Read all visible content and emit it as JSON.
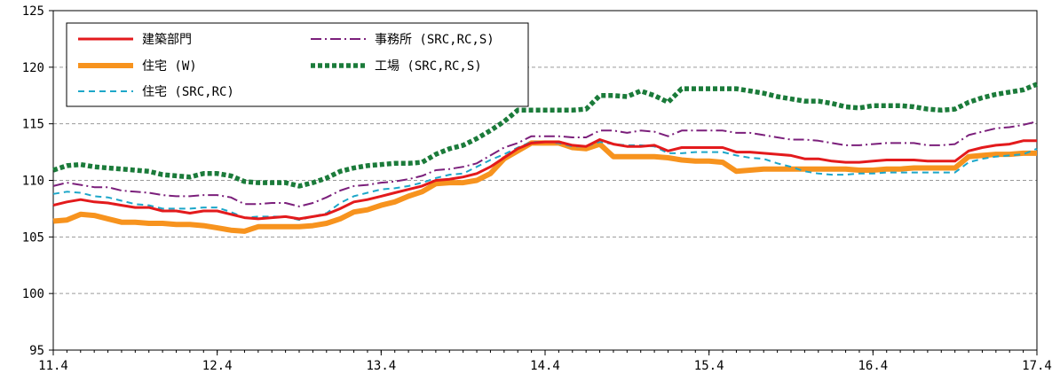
{
  "chart_data": {
    "type": "line",
    "title": "",
    "xlabel": "",
    "ylabel": "",
    "ylim": [
      95,
      125
    ],
    "y_ticks": [
      95,
      100,
      105,
      110,
      115,
      120,
      125
    ],
    "y_tick_labels": [
      "95",
      "100",
      "105",
      "110",
      "115",
      "120",
      "125"
    ],
    "x_tick_labels": [
      "11.4",
      "12.4",
      "13.4",
      "14.4",
      "15.4",
      "16.4",
      "17.4"
    ],
    "grid": "horizontal dashed",
    "legend_position": "top-left",
    "x": [
      "2011-04",
      "2011-05",
      "2011-06",
      "2011-07",
      "2011-08",
      "2011-09",
      "2011-10",
      "2011-11",
      "2011-12",
      "2012-01",
      "2012-02",
      "2012-03",
      "2012-04",
      "2012-05",
      "2012-06",
      "2012-07",
      "2012-08",
      "2012-09",
      "2012-10",
      "2012-11",
      "2012-12",
      "2013-01",
      "2013-02",
      "2013-03",
      "2013-04",
      "2013-05",
      "2013-06",
      "2013-07",
      "2013-08",
      "2013-09",
      "2013-10",
      "2013-11",
      "2013-12",
      "2014-01",
      "2014-02",
      "2014-03",
      "2014-04",
      "2014-05",
      "2014-06",
      "2014-07",
      "2014-08",
      "2014-09",
      "2014-10",
      "2014-11",
      "2014-12",
      "2015-01",
      "2015-02",
      "2015-03",
      "2015-04",
      "2015-05",
      "2015-06",
      "2015-07",
      "2015-08",
      "2015-09",
      "2015-10",
      "2015-11",
      "2015-12",
      "2016-01",
      "2016-02",
      "2016-03",
      "2016-04",
      "2016-05",
      "2016-06",
      "2016-07",
      "2016-08",
      "2016-09",
      "2016-10",
      "2016-11",
      "2016-12",
      "2017-01",
      "2017-02",
      "2017-03",
      "2017-04"
    ],
    "series": [
      {
        "name": "建築部門",
        "color": "#e31a1c",
        "style": "solid",
        "values": [
          107.8,
          108.1,
          108.3,
          108.1,
          108.0,
          107.8,
          107.6,
          107.6,
          107.3,
          107.3,
          107.1,
          107.3,
          107.3,
          107.0,
          106.7,
          106.6,
          106.7,
          106.8,
          106.6,
          106.8,
          107.0,
          107.5,
          108.1,
          108.3,
          108.6,
          108.9,
          109.2,
          109.5,
          110.0,
          110.1,
          110.3,
          110.6,
          111.2,
          112.0,
          112.8,
          113.3,
          113.4,
          113.4,
          113.1,
          113.0,
          113.6,
          113.2,
          113.0,
          113.0,
          113.1,
          112.6,
          112.9,
          112.9,
          112.9,
          112.9,
          112.5,
          112.5,
          112.4,
          112.3,
          112.2,
          111.9,
          111.9,
          111.7,
          111.6,
          111.6,
          111.7,
          111.8,
          111.8,
          111.8,
          111.7,
          111.7,
          111.7,
          112.6,
          112.9,
          113.1,
          113.2,
          113.5,
          113.5
        ]
      },
      {
        "name": "住宅 (W)",
        "color": "#f7931e",
        "style": "thick",
        "values": [
          106.4,
          106.5,
          107.0,
          106.9,
          106.6,
          106.3,
          106.3,
          106.2,
          106.2,
          106.1,
          106.1,
          106.0,
          105.8,
          105.6,
          105.5,
          105.9,
          105.9,
          105.9,
          105.9,
          106.0,
          106.2,
          106.6,
          107.2,
          107.4,
          107.8,
          108.1,
          108.6,
          109.0,
          109.7,
          109.8,
          109.8,
          110.0,
          110.6,
          111.9,
          112.6,
          113.3,
          113.3,
          113.3,
          112.9,
          112.8,
          113.2,
          112.1,
          112.1,
          112.1,
          112.1,
          112.0,
          111.8,
          111.7,
          111.7,
          111.6,
          110.8,
          110.9,
          111.0,
          111.0,
          111.0,
          111.0,
          111.0,
          111.0,
          111.0,
          110.9,
          110.9,
          111.0,
          111.0,
          111.1,
          111.1,
          111.1,
          111.1,
          112.1,
          112.2,
          112.3,
          112.3,
          112.4,
          112.4
        ]
      },
      {
        "name": "住宅 (SRC,RC)",
        "color": "#1da7c9",
        "style": "dashed",
        "values": [
          108.8,
          109.0,
          108.9,
          108.6,
          108.5,
          108.2,
          107.9,
          107.8,
          107.5,
          107.5,
          107.5,
          107.6,
          107.6,
          107.2,
          106.7,
          106.8,
          106.8,
          106.8,
          106.5,
          106.8,
          107.1,
          108.0,
          108.6,
          108.9,
          109.2,
          109.3,
          109.5,
          109.8,
          110.2,
          110.5,
          110.6,
          111.2,
          111.8,
          112.3,
          112.9,
          113.4,
          113.4,
          113.3,
          113.0,
          113.0,
          113.4,
          113.2,
          113.1,
          113.1,
          113.0,
          112.4,
          112.4,
          112.5,
          112.5,
          112.5,
          112.2,
          112.0,
          111.9,
          111.5,
          111.2,
          110.8,
          110.6,
          110.5,
          110.5,
          110.6,
          110.6,
          110.7,
          110.7,
          110.7,
          110.7,
          110.7,
          110.7,
          111.6,
          111.9,
          112.1,
          112.2,
          112.3,
          112.8
        ]
      },
      {
        "name": "事務所 (SRC,RC,S)",
        "color": "#7b1f7b",
        "style": "dashdot",
        "values": [
          109.5,
          109.8,
          109.6,
          109.4,
          109.4,
          109.1,
          109.0,
          108.9,
          108.7,
          108.6,
          108.6,
          108.7,
          108.7,
          108.5,
          107.9,
          107.9,
          108.0,
          108.0,
          107.7,
          108.0,
          108.5,
          109.1,
          109.5,
          109.6,
          109.8,
          109.9,
          110.1,
          110.4,
          110.9,
          111.0,
          111.2,
          111.5,
          112.2,
          112.9,
          113.3,
          113.9,
          113.9,
          113.9,
          113.8,
          113.8,
          114.4,
          114.4,
          114.2,
          114.4,
          114.3,
          113.9,
          114.4,
          114.4,
          114.4,
          114.4,
          114.2,
          114.2,
          114.0,
          113.8,
          113.6,
          113.6,
          113.5,
          113.3,
          113.1,
          113.1,
          113.2,
          113.3,
          113.3,
          113.3,
          113.1,
          113.1,
          113.2,
          114.0,
          114.3,
          114.6,
          114.7,
          114.9,
          115.2
        ]
      },
      {
        "name": "工場 (SRC,RC,S)",
        "color": "#1b7b3a",
        "style": "dotted",
        "values": [
          110.9,
          111.3,
          111.4,
          111.2,
          111.1,
          111.0,
          110.9,
          110.8,
          110.5,
          110.4,
          110.3,
          110.6,
          110.6,
          110.4,
          109.9,
          109.8,
          109.8,
          109.8,
          109.5,
          109.8,
          110.2,
          110.8,
          111.1,
          111.3,
          111.4,
          111.5,
          111.5,
          111.6,
          112.3,
          112.8,
          113.1,
          113.7,
          114.4,
          115.2,
          116.2,
          116.2,
          116.2,
          116.2,
          116.2,
          116.3,
          117.5,
          117.5,
          117.4,
          117.9,
          117.5,
          116.9,
          118.1,
          118.1,
          118.1,
          118.1,
          118.1,
          117.9,
          117.7,
          117.4,
          117.2,
          117.0,
          117.0,
          116.8,
          116.5,
          116.4,
          116.6,
          116.6,
          116.6,
          116.5,
          116.3,
          116.2,
          116.3,
          116.9,
          117.3,
          117.6,
          117.8,
          118.0,
          118.5
        ]
      }
    ]
  }
}
